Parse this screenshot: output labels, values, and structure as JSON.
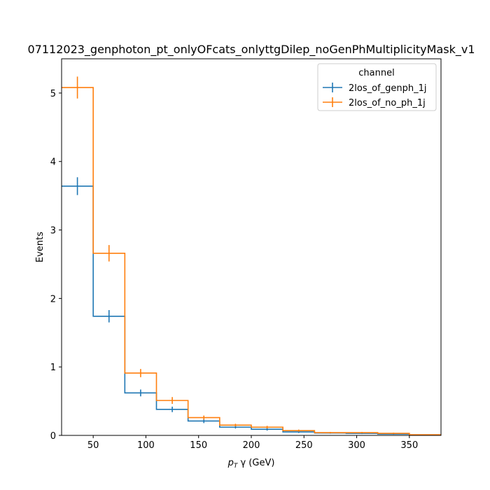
{
  "chart_data": {
    "type": "step-histogram",
    "title": "07112023_genphoton_pt_onlyOFcats_onlyttgDilep_noGenPhMultiplicityMask_v1",
    "xlabel_main": "p",
    "xlabel_sub": "T",
    "xlabel_rest": " γ (GeV)",
    "ylabel": "Events",
    "xlim": [
      20,
      380
    ],
    "ylim": [
      0,
      5.5
    ],
    "xticks": [
      50,
      100,
      150,
      200,
      250,
      300,
      350
    ],
    "yticks": [
      0,
      1,
      2,
      3,
      4,
      5
    ],
    "bin_edges": [
      20,
      50,
      80,
      110,
      140,
      170,
      200,
      230,
      260,
      290,
      320,
      350,
      380
    ],
    "legend": {
      "title": "channel",
      "placement": "top-right"
    },
    "series": [
      {
        "name": "2los_of_genph_1j",
        "color": "#1f77b4",
        "values": [
          3.64,
          1.74,
          0.62,
          0.38,
          0.21,
          0.12,
          0.09,
          0.05,
          0.035,
          0.03,
          0.02,
          0.005
        ],
        "errors": [
          0.13,
          0.09,
          0.05,
          0.04,
          0.03,
          0.02,
          0.02,
          0.015,
          0.01,
          0.01,
          0.01,
          0.005
        ]
      },
      {
        "name": "2los_of_no_ph_1j",
        "color": "#ff7f0e",
        "values": [
          5.08,
          2.66,
          0.91,
          0.51,
          0.26,
          0.15,
          0.12,
          0.07,
          0.04,
          0.04,
          0.03,
          0.01
        ],
        "errors": [
          0.16,
          0.12,
          0.06,
          0.05,
          0.03,
          0.02,
          0.02,
          0.015,
          0.01,
          0.01,
          0.01,
          0.005
        ]
      }
    ]
  }
}
